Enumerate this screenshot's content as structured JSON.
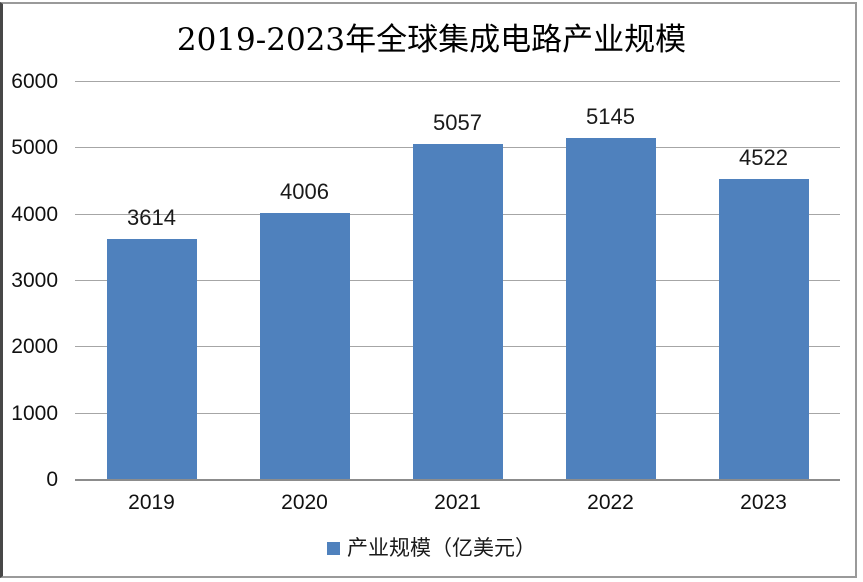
{
  "title": "2019-2023年全球集成电路产业规模",
  "legend": {
    "label": "产业规模（亿美元）",
    "marker_color": "#4F81BD"
  },
  "colors": {
    "bar": "#4F81BD",
    "gridline": "#A6A6A6",
    "axis_line": "#8C8C8C",
    "frame_border": "#9A9A9A",
    "text": "#111111"
  },
  "chart_data": {
    "type": "bar",
    "title": "2019-2023年全球集成电路产业规模",
    "categories": [
      "2019",
      "2020",
      "2021",
      "2022",
      "2023"
    ],
    "series": [
      {
        "name": "产业规模（亿美元）",
        "values": [
          3614,
          4006,
          5057,
          5145,
          4522
        ]
      }
    ],
    "xlabel": "",
    "ylabel": "",
    "ylim": [
      0,
      6000
    ],
    "yticks": [
      0,
      1000,
      2000,
      3000,
      4000,
      5000,
      6000
    ],
    "grid": true,
    "data_labels": true,
    "legend_position": "bottom"
  }
}
